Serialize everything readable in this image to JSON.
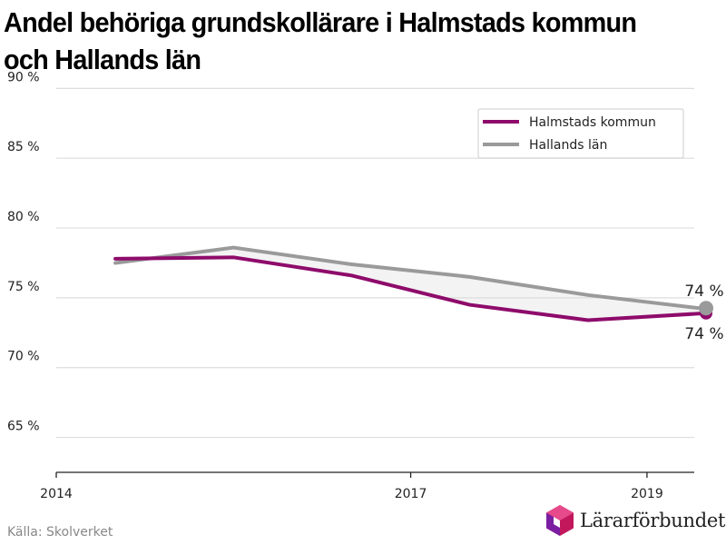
{
  "title": "Andel behöriga grundskollärare i Halmstads kommun och Hallands län",
  "source": "Källa: Skolverket",
  "brand": {
    "name": "Lärarförbundet",
    "colors": [
      "#c2185b",
      "#7b1fa2",
      "#e91e63"
    ]
  },
  "chart_data": {
    "type": "line",
    "title": "Andel behöriga grundskollärare i Halmstads kommun och Hallands län",
    "xlabel": "",
    "ylabel": "",
    "ylim": [
      62.5,
      91
    ],
    "xlim": [
      2014,
      2019.4
    ],
    "y_ticks": [
      65,
      70,
      75,
      80,
      85,
      90
    ],
    "y_tick_labels": [
      "65 %",
      "70 %",
      "75 %",
      "80 %",
      "85 %",
      "90 %"
    ],
    "x_ticks": [
      2014,
      2017,
      2019
    ],
    "x_tick_labels": [
      "2014",
      "2017",
      "2019"
    ],
    "grid": true,
    "legend": "top-right",
    "x": [
      2014.5,
      2015.5,
      2016.5,
      2017.5,
      2018.5,
      2019.5
    ],
    "series": [
      {
        "name": "Halmstads kommun",
        "color": "#8e0b6b",
        "values": [
          77.8,
          77.9,
          76.6,
          74.5,
          73.4,
          73.9
        ],
        "end_label": "74 %"
      },
      {
        "name": "Hallands län",
        "color": "#9a9a9a",
        "values": [
          77.5,
          78.6,
          77.4,
          76.5,
          75.2,
          74.2
        ],
        "end_label": "74 %"
      }
    ]
  }
}
